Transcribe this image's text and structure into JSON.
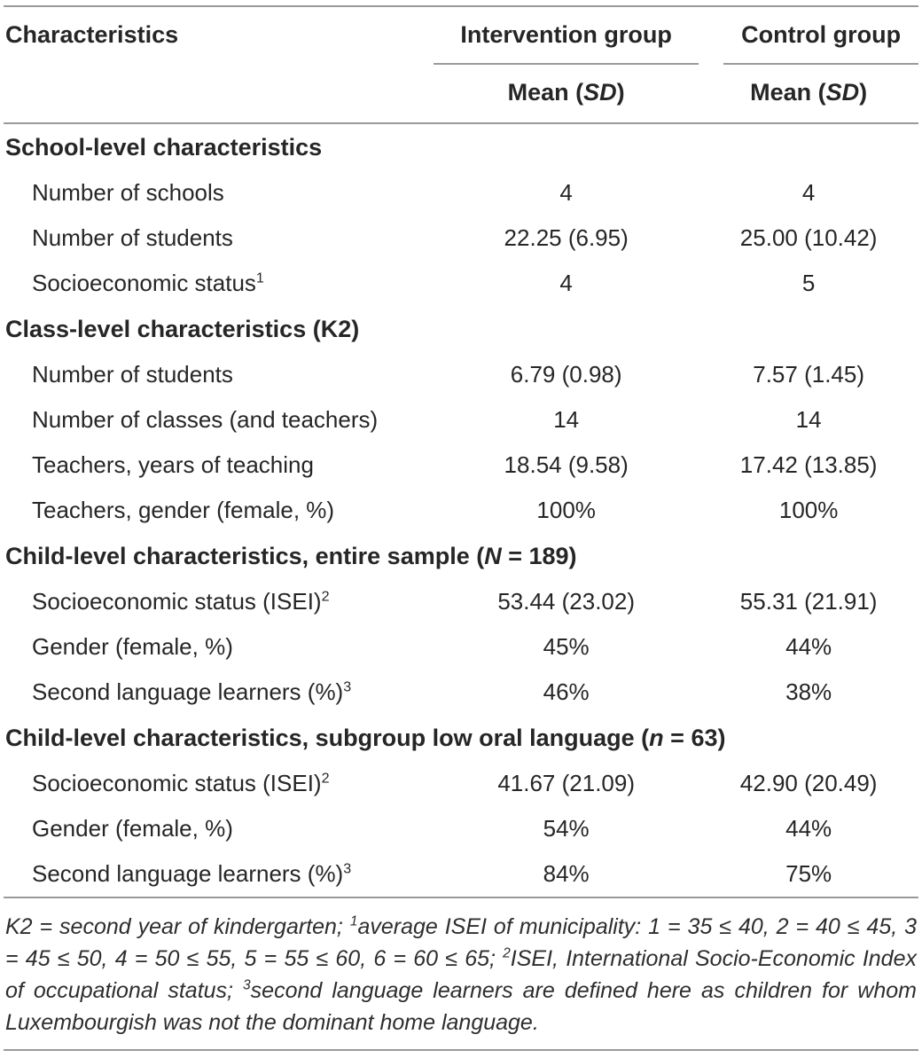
{
  "table": {
    "header": {
      "characteristics": "Characteristics",
      "intervention": "Intervention group",
      "control": "Control group",
      "mean_prefix": "Mean (",
      "mean_sd": "SD",
      "mean_suffix": ")"
    },
    "sections": [
      {
        "title_pre": "School-level characteristics",
        "title_var": "",
        "title_post": "",
        "rows": [
          {
            "label": "Number of schools",
            "sup": "",
            "intervention": "4",
            "control": "4"
          },
          {
            "label": "Number of students",
            "sup": "",
            "intervention": "22.25 (6.95)",
            "control": "25.00 (10.42)"
          },
          {
            "label": "Socioeconomic status",
            "sup": "1",
            "intervention": "4",
            "control": "5"
          }
        ]
      },
      {
        "title_pre": "Class-level characteristics (K2)",
        "title_var": "",
        "title_post": "",
        "rows": [
          {
            "label": "Number of students",
            "sup": "",
            "intervention": "6.79 (0.98)",
            "control": "7.57 (1.45)"
          },
          {
            "label": "Number of classes (and teachers)",
            "sup": "",
            "intervention": "14",
            "control": "14"
          },
          {
            "label": "Teachers, years of teaching",
            "sup": "",
            "intervention": "18.54 (9.58)",
            "control": "17.42 (13.85)"
          },
          {
            "label": "Teachers, gender (female, %)",
            "sup": "",
            "intervention": "100%",
            "control": "100%"
          }
        ]
      },
      {
        "title_pre": "Child-level characteristics, entire sample (",
        "title_var": "N",
        "title_post": " = 189)",
        "rows": [
          {
            "label": "Socioeconomic status (ISEI)",
            "sup": "2",
            "intervention": "53.44 (23.02)",
            "control": "55.31 (21.91)"
          },
          {
            "label": "Gender (female, %)",
            "sup": "",
            "intervention": "45%",
            "control": "44%"
          },
          {
            "label": "Second language learners (%)",
            "sup": "3",
            "intervention": "46%",
            "control": "38%"
          }
        ]
      },
      {
        "title_pre": "Child-level characteristics, subgroup low oral language (",
        "title_var": "n",
        "title_post": " = 63)",
        "rows": [
          {
            "label": "Socioeconomic status (ISEI)",
            "sup": "2",
            "intervention": "41.67 (21.09)",
            "control": "42.90 (20.49)"
          },
          {
            "label": "Gender (female, %)",
            "sup": "",
            "intervention": "54%",
            "control": "44%"
          },
          {
            "label": "Second language learners (%)",
            "sup": "3",
            "intervention": "84%",
            "control": "75%"
          }
        ]
      }
    ]
  },
  "footnote": {
    "part1": "K2 = second year of kindergarten; ",
    "sup1": "1",
    "part2": "average ISEI of municipality: 1 = 35 ≤ 40, 2 = 40 ≤ 45, 3 = 45 ≤ 50, 4 = 50 ≤ 55, 5 = 55 ≤ 60, 6 = 60 ≤ 65; ",
    "sup2": "2",
    "part3": "ISEI, International Socio-Economic Index of occupational status; ",
    "sup3": "3",
    "part4": "second language learners are defined here as children for whom Luxembourgish was not the dominant home language."
  }
}
